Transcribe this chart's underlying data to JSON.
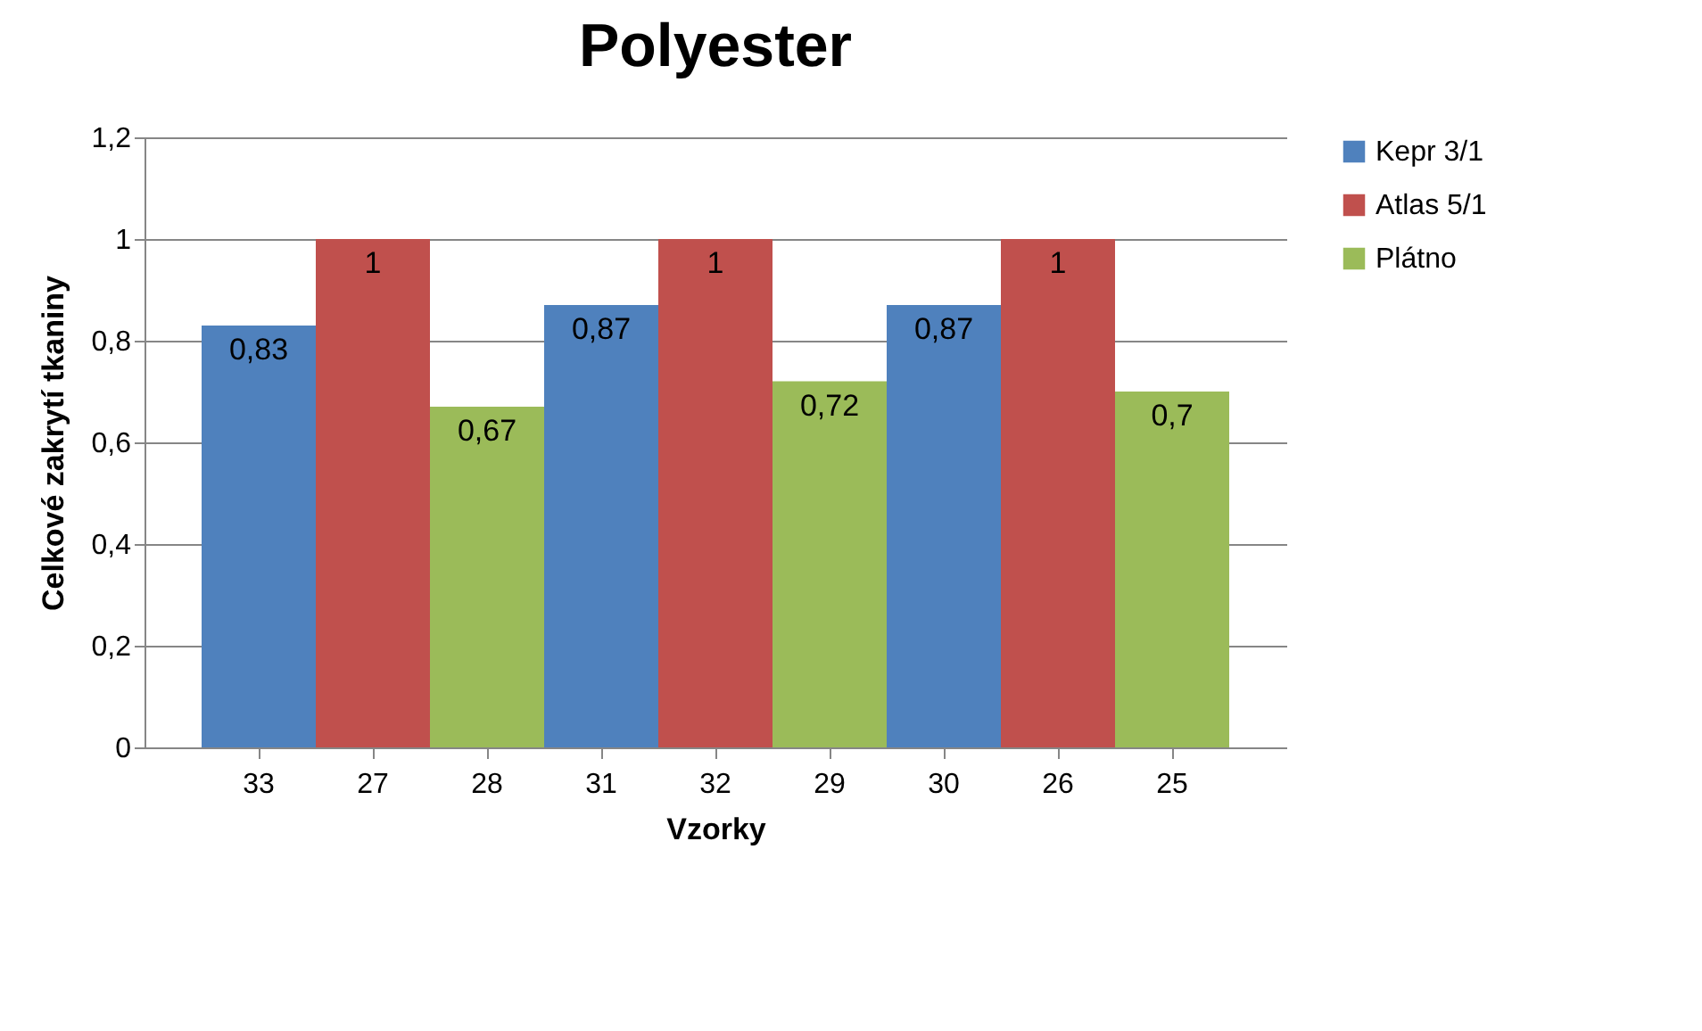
{
  "chart_data": {
    "type": "bar",
    "title": "Polyester",
    "xlabel": "Vzorky",
    "ylabel": "Celkové zakrytí tkaniny",
    "categories": [
      "33",
      "27",
      "28",
      "31",
      "32",
      "29",
      "30",
      "26",
      "25"
    ],
    "series": [
      {
        "name": "Kepr 3/1",
        "color": "#4f81bd",
        "values": [
          0.83,
          null,
          null,
          0.87,
          null,
          null,
          0.87,
          null,
          null
        ],
        "value_labels": [
          "0,83",
          null,
          null,
          "0,87",
          null,
          null,
          "0,87",
          null,
          null
        ]
      },
      {
        "name": "Atlas 5/1",
        "color": "#c0504d",
        "values": [
          null,
          1,
          null,
          null,
          1,
          null,
          null,
          1,
          null
        ],
        "value_labels": [
          null,
          "1",
          null,
          null,
          "1",
          null,
          null,
          "1",
          null
        ]
      },
      {
        "name": "Plátno",
        "color": "#9bbb59",
        "values": [
          null,
          null,
          0.67,
          null,
          null,
          0.72,
          null,
          null,
          0.7
        ],
        "value_labels": [
          null,
          null,
          "0,67",
          null,
          null,
          "0,72",
          null,
          null,
          "0,7"
        ]
      }
    ],
    "ylim": [
      0,
      1.2
    ],
    "yticks": [
      0,
      {
        "value": 0.2,
        "label": "0,2"
      },
      {
        "value": 0.4,
        "label": "0,4"
      },
      {
        "value": 0.6,
        "label": "0,6"
      },
      {
        "value": 0.8,
        "label": "0,8"
      },
      1,
      {
        "value": 1.2,
        "label": "1,2"
      }
    ],
    "grid": "y",
    "legend": "right"
  }
}
